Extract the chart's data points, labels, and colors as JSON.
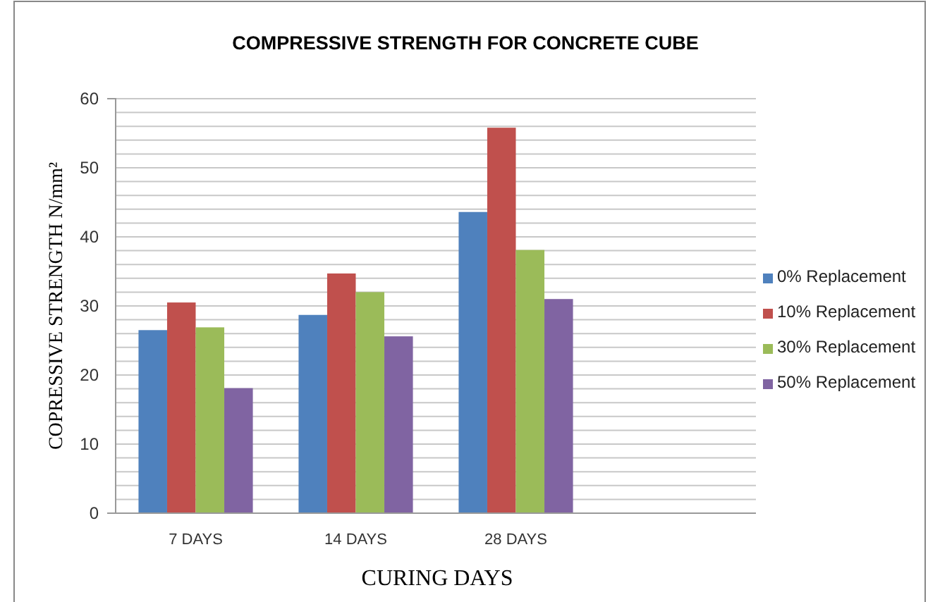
{
  "chart_data": {
    "type": "bar",
    "title": "COMPRESSIVE STRENGTH FOR CONCRETE CUBE",
    "xlabel": "CURING DAYS",
    "ylabel": "COPRESSIVE STRENGTH N/mm²",
    "categories": [
      "7 DAYS",
      "14 DAYS",
      "28 DAYS",
      null
    ],
    "series": [
      {
        "name": "0% Replacement",
        "color": "#4f81bd",
        "values": [
          26.5,
          28.7,
          43.6,
          null
        ]
      },
      {
        "name": "10% Replacement",
        "color": "#c0504d",
        "values": [
          30.5,
          34.7,
          55.8,
          null
        ]
      },
      {
        "name": "30% Replacement",
        "color": "#9bbb59",
        "values": [
          26.9,
          32.0,
          38.1,
          null
        ]
      },
      {
        "name": "50% Replacement",
        "color": "#8064a2",
        "values": [
          18.1,
          25.6,
          31.0,
          null
        ]
      }
    ],
    "ylim": [
      0,
      60
    ],
    "yticks": [
      0,
      {
        "value": 2,
        "label": null
      },
      {
        "value": 4,
        "label": null
      },
      {
        "value": 6,
        "label": null
      },
      {
        "value": 8,
        "label": null
      },
      10,
      {
        "value": 12,
        "label": null
      },
      {
        "value": 14,
        "label": null
      },
      {
        "value": 16,
        "label": null
      },
      {
        "value": 18,
        "label": null
      },
      20,
      {
        "value": 22,
        "label": null
      },
      {
        "value": 24,
        "label": null
      },
      {
        "value": 26,
        "label": null
      },
      {
        "value": 28,
        "label": null
      },
      30,
      {
        "value": 32,
        "label": null
      },
      {
        "value": 34,
        "label": null
      },
      {
        "value": 36,
        "label": null
      },
      {
        "value": 38,
        "label": null
      },
      40,
      {
        "value": 42,
        "label": null
      },
      {
        "value": 44,
        "label": null
      },
      {
        "value": 46,
        "label": null
      },
      {
        "value": 48,
        "label": null
      },
      50,
      {
        "value": 52,
        "label": null
      },
      {
        "value": 54,
        "label": null
      },
      {
        "value": 56,
        "label": null
      },
      {
        "value": 58,
        "label": null
      },
      60
    ],
    "grid": "y",
    "legend": "right"
  }
}
